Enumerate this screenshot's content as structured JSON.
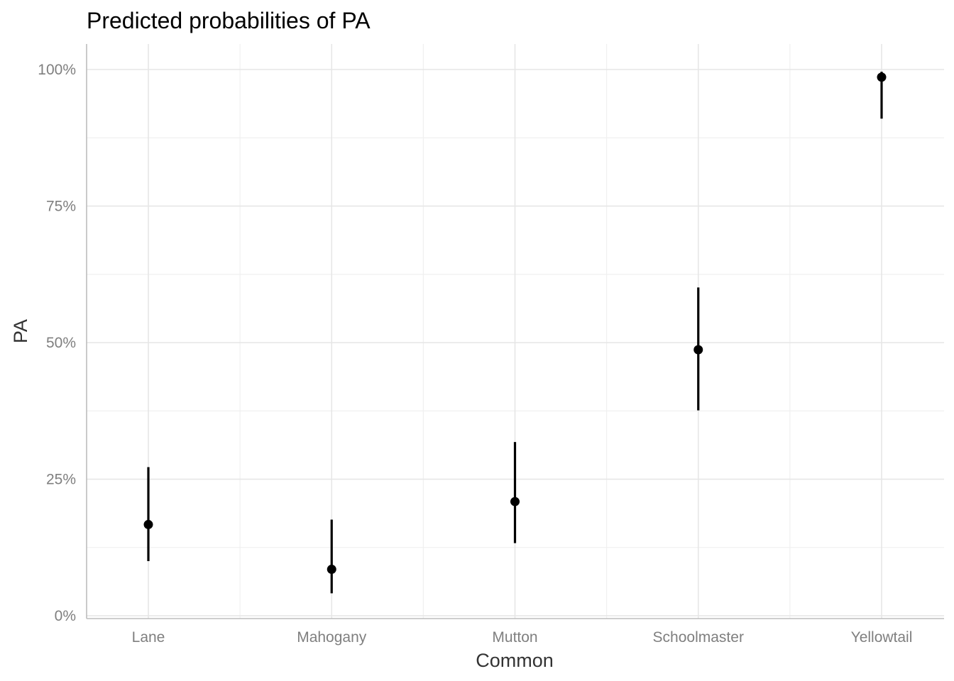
{
  "chart_data": {
    "type": "scatter",
    "title": "Predicted probabilities of PA",
    "xlabel": "Common",
    "ylabel": "PA",
    "categories": [
      "Lane",
      "Mahogany",
      "Mutton",
      "Schoolmaster",
      "Yellowtail"
    ],
    "series": [
      {
        "name": "PA",
        "values": [
          0.167,
          0.085,
          0.209,
          0.487,
          0.986
        ],
        "ci_low": [
          0.1,
          0.041,
          0.133,
          0.376,
          0.91
        ],
        "ci_high": [
          0.272,
          0.176,
          0.318,
          0.601,
          0.996
        ]
      }
    ],
    "ylim": [
      -0.005,
      1.048
    ],
    "y_ticks": [
      0,
      0.25,
      0.5,
      0.75,
      1.0
    ],
    "y_tick_labels": [
      "0%",
      "25%",
      "50%",
      "75%",
      "100%"
    ],
    "y_minor_ticks": [
      0.125,
      0.375,
      0.625,
      0.875
    ],
    "grid": true,
    "legend": "none"
  }
}
